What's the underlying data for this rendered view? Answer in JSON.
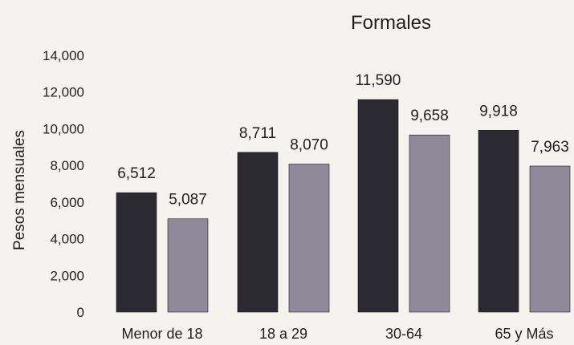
{
  "chart_data": {
    "type": "bar",
    "title": "Formales",
    "xlabel": "",
    "ylabel": "Pesos mensuales",
    "categories": [
      "Menor de 18",
      "18 a 29",
      "30-64",
      "65 y Más"
    ],
    "series": [
      {
        "values": [
          6512,
          8711,
          11590,
          9918
        ],
        "labels": [
          "6,512",
          "8,711",
          "11,590",
          "9,918"
        ],
        "color": "#2b2a31"
      },
      {
        "values": [
          5087,
          8070,
          9658,
          7963
        ],
        "labels": [
          "5,087",
          "8,070",
          "9,658",
          "7,963"
        ],
        "color": "#8f8a99"
      }
    ],
    "ylim": [
      0,
      14000
    ],
    "yticks": [
      0,
      2000,
      4000,
      6000,
      8000,
      10000,
      12000,
      14000
    ],
    "ytick_labels": [
      "0",
      "2,000",
      "4,000",
      "6,000",
      "8,000",
      "10,000",
      "12,000",
      "14,000"
    ],
    "grid": false,
    "legend": "none"
  }
}
